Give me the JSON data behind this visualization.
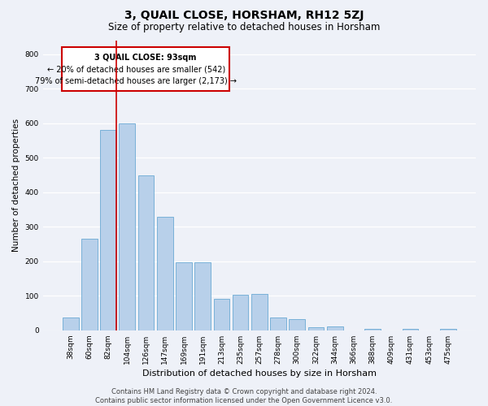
{
  "title": "3, QUAIL CLOSE, HORSHAM, RH12 5ZJ",
  "subtitle": "Size of property relative to detached houses in Horsham",
  "xlabel": "Distribution of detached houses by size in Horsham",
  "ylabel": "Number of detached properties",
  "bar_values": [
    38,
    265,
    582,
    600,
    450,
    330,
    197,
    197,
    92,
    102,
    105,
    38,
    33,
    10,
    11,
    0,
    5,
    0,
    5,
    0,
    5
  ],
  "bin_labels": [
    "38sqm",
    "60sqm",
    "82sqm",
    "104sqm",
    "126sqm",
    "147sqm",
    "169sqm",
    "191sqm",
    "213sqm",
    "235sqm",
    "257sqm",
    "278sqm",
    "300sqm",
    "322sqm",
    "344sqm",
    "366sqm",
    "388sqm",
    "409sqm",
    "431sqm",
    "453sqm",
    "475sqm"
  ],
  "bar_color": "#b8d0ea",
  "bar_edge_color": "#6aaad4",
  "annotation_line1": "3 QUAIL CLOSE: 93sqm",
  "annotation_line2": "← 20% of detached houses are smaller (542)",
  "annotation_line3": "79% of semi-detached houses are larger (2,173) →",
  "vline_bar_index": 2,
  "vline_color": "#cc0000",
  "ylim": [
    0,
    840
  ],
  "yticks": [
    0,
    100,
    200,
    300,
    400,
    500,
    600,
    700,
    800
  ],
  "background_color": "#eef1f8",
  "plot_bg_color": "#eef1f8",
  "grid_color": "#ffffff",
  "footer_text": "Contains HM Land Registry data © Crown copyright and database right 2024.\nContains public sector information licensed under the Open Government Licence v3.0.",
  "title_fontsize": 10,
  "subtitle_fontsize": 8.5,
  "xlabel_fontsize": 8,
  "ylabel_fontsize": 7.5,
  "tick_fontsize": 6.5,
  "footer_fontsize": 6,
  "annotation_fontsize": 7
}
